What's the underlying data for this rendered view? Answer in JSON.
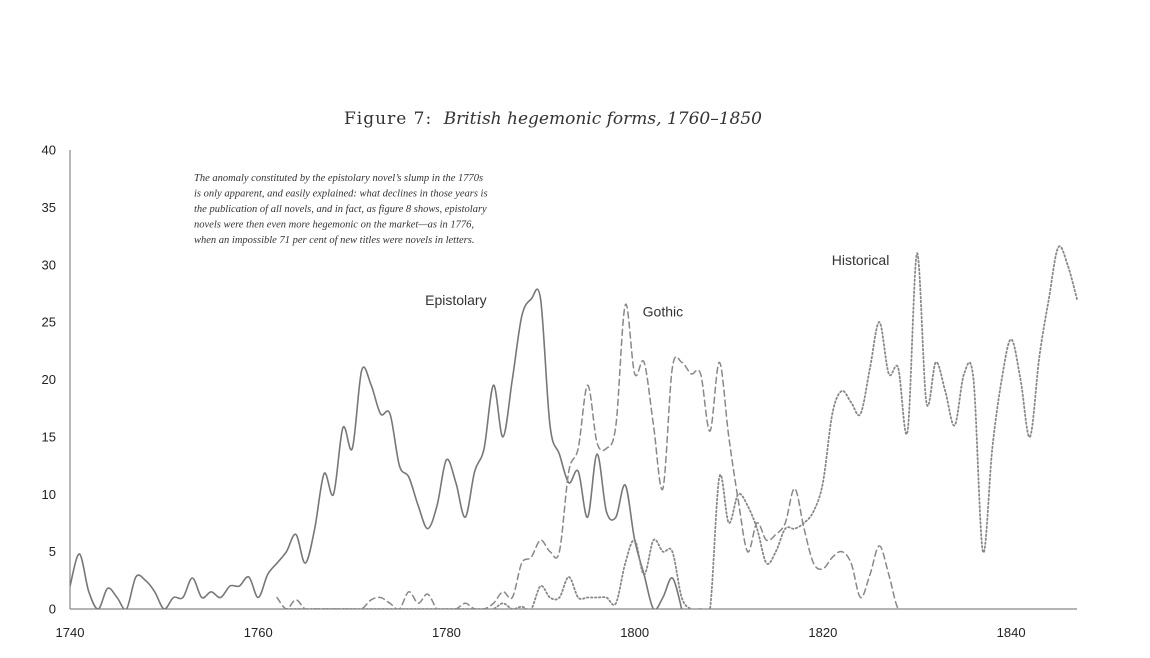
{
  "chart_data": {
    "type": "line",
    "title": {
      "prefix": "Figure 7:",
      "main": "British hegemonic forms, 1760–1850"
    },
    "xlabel": "",
    "ylabel": "",
    "xlim": [
      1740,
      1847
    ],
    "ylim": [
      0,
      40
    ],
    "x_ticks": [
      "1740",
      "1760",
      "1780",
      "1800",
      "1820",
      "1840"
    ],
    "y_ticks": [
      "0",
      "5",
      "10",
      "15",
      "20",
      "25",
      "30",
      "35",
      "40"
    ],
    "grid": false,
    "annotation": [
      "The anomaly constituted by the epistolary novel’s slump in the 1770s",
      "is only apparent, and easily explained: what declines in those years is",
      "the publication of all novels, and in fact, as figure 8 shows, epistolary",
      "novels were then even more hegemonic on the market—as in 1776,",
      "when an impossible 71 per cent of new titles were novels in letters."
    ],
    "series": [
      {
        "name": "Epistolary",
        "style": "solid",
        "label_at": [
          1781,
          26.5
        ],
        "x": [
          1740,
          1741,
          1742,
          1743,
          1744,
          1745,
          1746,
          1747,
          1748,
          1749,
          1750,
          1751,
          1752,
          1753,
          1754,
          1755,
          1756,
          1757,
          1758,
          1759,
          1760,
          1761,
          1762,
          1763,
          1764,
          1765,
          1766,
          1767,
          1768,
          1769,
          1770,
          1771,
          1772,
          1773,
          1774,
          1775,
          1776,
          1777,
          1778,
          1779,
          1780,
          1781,
          1782,
          1783,
          1784,
          1785,
          1786,
          1787,
          1788,
          1789,
          1790,
          1791,
          1792,
          1793,
          1794,
          1795,
          1796,
          1797,
          1798,
          1799,
          1800,
          1801,
          1802,
          1803,
          1804,
          1805
        ],
        "values": [
          2,
          4.8,
          1.5,
          0,
          1.8,
          1,
          0,
          2.8,
          2.5,
          1.5,
          0,
          1,
          1,
          2.7,
          1,
          1.5,
          1,
          2,
          2,
          2.8,
          1,
          3,
          4,
          5,
          6.5,
          4,
          7,
          11.8,
          10,
          15.8,
          14,
          20.8,
          19.5,
          17,
          17,
          12.5,
          11.5,
          9,
          7,
          9,
          13,
          11,
          8,
          12,
          14,
          19.5,
          15,
          20,
          25.5,
          27,
          27,
          16,
          13.5,
          11,
          12,
          8,
          13.5,
          8.5,
          8,
          10.8,
          6,
          3,
          0,
          1,
          2.7,
          0
        ]
      },
      {
        "name": "Gothic",
        "style": "dashed",
        "label_at": [
          1803,
          25.5
        ],
        "x": [
          1762,
          1763,
          1764,
          1765,
          1766,
          1767,
          1768,
          1769,
          1770,
          1771,
          1772,
          1773,
          1774,
          1775,
          1776,
          1777,
          1778,
          1779,
          1780,
          1781,
          1782,
          1783,
          1784,
          1785,
          1786,
          1787,
          1788,
          1789,
          1790,
          1791,
          1792,
          1793,
          1794,
          1795,
          1796,
          1797,
          1798,
          1799,
          1800,
          1801,
          1802,
          1803,
          1804,
          1805,
          1806,
          1807,
          1808,
          1809,
          1810,
          1811,
          1812,
          1813,
          1814,
          1815,
          1816,
          1817,
          1818,
          1819,
          1820,
          1821,
          1822,
          1823,
          1824,
          1825,
          1826,
          1827,
          1828,
          1829
        ],
        "values": [
          1,
          0,
          0.8,
          0,
          0,
          0,
          0,
          0,
          0,
          0,
          0.8,
          1,
          0.5,
          0,
          1.5,
          0.5,
          1.3,
          0,
          0,
          0,
          0.5,
          0,
          0,
          0.5,
          1.5,
          1,
          4,
          4.5,
          6,
          5,
          5,
          12,
          14,
          19.5,
          14.5,
          14,
          16,
          26.5,
          20.5,
          21.5,
          16,
          10.5,
          21,
          21.5,
          20.5,
          20.5,
          15.5,
          21.5,
          15,
          9.5,
          5,
          7.5,
          6,
          6.5,
          7.5,
          10.5,
          7,
          4,
          3.5,
          4.5,
          5,
          4,
          1,
          3,
          5.5,
          3,
          0,
          0
        ]
      },
      {
        "name": "Historical",
        "style": "dotted",
        "label_at": [
          1824,
          30
        ],
        "x": [
          1763,
          1764,
          1765,
          1766,
          1767,
          1768,
          1769,
          1770,
          1771,
          1772,
          1773,
          1774,
          1775,
          1776,
          1777,
          1778,
          1779,
          1780,
          1781,
          1782,
          1783,
          1784,
          1785,
          1786,
          1787,
          1788,
          1789,
          1790,
          1791,
          1792,
          1793,
          1794,
          1795,
          1796,
          1797,
          1798,
          1799,
          1800,
          1801,
          1802,
          1803,
          1804,
          1805,
          1806,
          1807,
          1808,
          1809,
          1810,
          1811,
          1812,
          1813,
          1814,
          1815,
          1816,
          1817,
          1818,
          1819,
          1820,
          1821,
          1822,
          1823,
          1824,
          1825,
          1826,
          1827,
          1828,
          1829,
          1830,
          1831,
          1832,
          1833,
          1834,
          1835,
          1836,
          1837,
          1838,
          1839,
          1840,
          1841,
          1842,
          1843,
          1844,
          1845,
          1846,
          1847
        ],
        "values": [
          0,
          0,
          0,
          0,
          0,
          0,
          0,
          0,
          0,
          0,
          0,
          0,
          0,
          0,
          0,
          0,
          0,
          0,
          0,
          0,
          0,
          0,
          0,
          0.5,
          0,
          0.2,
          0,
          2,
          1,
          1,
          2.8,
          1,
          1,
          1,
          1,
          0.5,
          4,
          6,
          3,
          6,
          5,
          5,
          1,
          0,
          0,
          0,
          11.5,
          7.5,
          10,
          9,
          7,
          4,
          5,
          7,
          7,
          7.5,
          8.5,
          11,
          17,
          19,
          18,
          17,
          21,
          25,
          20.5,
          21,
          15.5,
          31,
          18,
          21.5,
          19,
          16,
          20.5,
          20,
          5,
          14,
          20,
          23.5,
          20,
          15,
          22,
          27,
          31.5,
          30,
          27
        ]
      }
    ]
  }
}
